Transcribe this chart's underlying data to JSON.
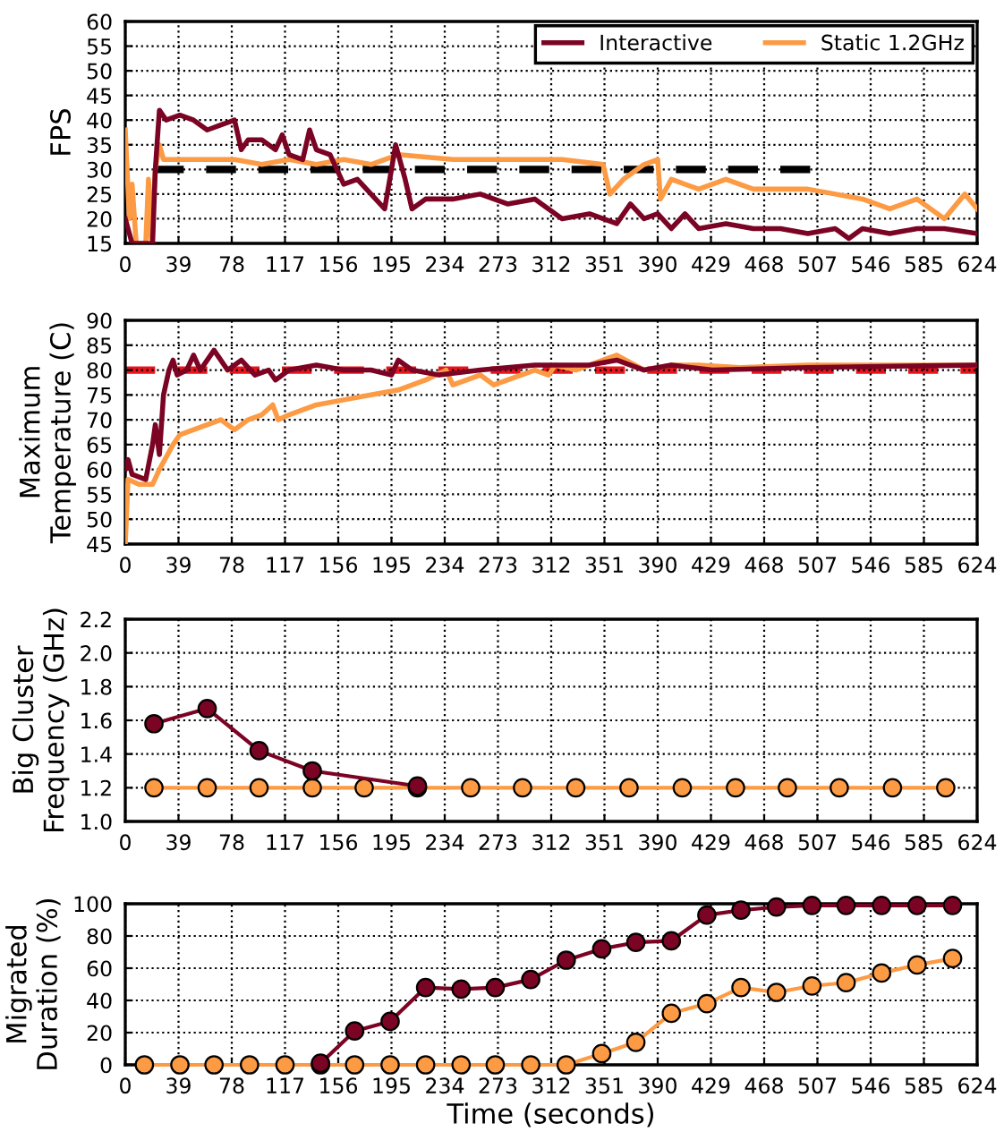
{
  "chart_data": [
    {
      "type": "line",
      "ylabel": "FPS",
      "xlim": [
        0,
        624
      ],
      "xticks": [
        0,
        39,
        78,
        117,
        156,
        195,
        234,
        273,
        312,
        351,
        390,
        429,
        468,
        507,
        546,
        585,
        624
      ],
      "ylim": [
        15,
        60
      ],
      "yticks": [
        15,
        20,
        25,
        30,
        35,
        40,
        45,
        50,
        55,
        60
      ],
      "grid": true,
      "legend": "top right",
      "marker": "none",
      "series": [
        {
          "name": "Interactive",
          "color": "#7b0323",
          "x": [
            0,
            5,
            20,
            22,
            25,
            30,
            40,
            50,
            60,
            70,
            80,
            85,
            90,
            100,
            110,
            115,
            120,
            130,
            135,
            140,
            150,
            155,
            160,
            170,
            180,
            190,
            195,
            198,
            205,
            210,
            220,
            240,
            260,
            280,
            300,
            310,
            320,
            340,
            360,
            370,
            380,
            390,
            400,
            410,
            420,
            440,
            460,
            480,
            500,
            520,
            530,
            540,
            560,
            580,
            600,
            624
          ],
          "values": [
            20,
            15,
            15,
            30,
            42,
            40,
            41,
            40,
            38,
            39,
            40,
            34,
            36,
            36,
            34,
            37,
            33,
            32,
            38,
            34,
            33,
            30,
            27,
            28,
            25,
            22,
            30,
            35,
            28,
            22,
            24,
            24,
            25,
            23,
            24,
            22,
            20,
            21,
            19,
            23,
            20,
            21,
            18,
            21,
            18,
            19,
            18,
            18,
            17,
            18,
            16,
            18,
            17,
            18,
            18,
            17
          ]
        },
        {
          "name": "Static 1.2GHz",
          "color": "#fd9a44",
          "x": [
            0,
            3,
            5,
            8,
            15,
            17,
            19,
            22,
            25,
            28,
            40,
            60,
            80,
            100,
            120,
            140,
            160,
            180,
            200,
            240,
            280,
            320,
            350,
            355,
            365,
            380,
            390,
            392,
            400,
            420,
            440,
            460,
            480,
            500,
            520,
            540,
            560,
            580,
            600,
            615,
            624
          ],
          "values": [
            38,
            20,
            27,
            15,
            15,
            28,
            16,
            30,
            35,
            32,
            32,
            32,
            32,
            31,
            32,
            31,
            32,
            31,
            33,
            32,
            32,
            32,
            31,
            25,
            28,
            31,
            32,
            24,
            28,
            26,
            28,
            26,
            26,
            26,
            25,
            24,
            22,
            24,
            20,
            25,
            22
          ]
        },
        {
          "color": "#000000",
          "line_style": "dashed",
          "x": [
            21,
            504
          ],
          "values": [
            30,
            30
          ]
        }
      ]
    },
    {
      "type": "line",
      "ylabel": "Maximum\nTemperature (C)",
      "xlim": [
        0,
        624
      ],
      "xticks": [
        0,
        39,
        78,
        117,
        156,
        195,
        234,
        273,
        312,
        351,
        390,
        429,
        468,
        507,
        546,
        585,
        624
      ],
      "ylim": [
        45,
        90
      ],
      "yticks": [
        45,
        50,
        55,
        60,
        65,
        70,
        75,
        80,
        85,
        90
      ],
      "grid": true,
      "marker": "none",
      "ref_lines": [
        {
          "axis": "y",
          "value": 80,
          "color": "#e8141c",
          "line_style": "dashed"
        }
      ],
      "series": [
        {
          "color": "#7b0323",
          "x": [
            0,
            2,
            5,
            15,
            20,
            22,
            25,
            28,
            32,
            35,
            38,
            45,
            50,
            55,
            65,
            75,
            85,
            95,
            105,
            110,
            120,
            140,
            160,
            180,
            195,
            200,
            210,
            230,
            260,
            300,
            340,
            360,
            380,
            400,
            430,
            500,
            624
          ],
          "values": [
            60,
            62,
            59,
            58,
            65,
            69,
            63,
            75,
            80,
            82,
            79,
            80,
            83,
            80,
            84,
            80,
            82,
            79,
            80,
            78,
            80,
            81,
            80,
            80,
            79,
            82,
            80,
            79,
            80,
            81,
            81,
            82,
            80,
            81,
            80,
            80.5,
            81
          ]
        },
        {
          "color": "#fd9a44",
          "x": [
            0,
            2,
            10,
            20,
            25,
            35,
            40,
            60,
            70,
            80,
            90,
            100,
            108,
            112,
            120,
            140,
            160,
            180,
            200,
            220,
            235,
            240,
            260,
            270,
            290,
            300,
            310,
            315,
            330,
            350,
            360,
            380,
            400,
            420,
            450,
            500,
            560,
            624
          ],
          "values": [
            45,
            58,
            57,
            57,
            60,
            65,
            67,
            69,
            70,
            68,
            70,
            71,
            73,
            70,
            71,
            73,
            74,
            75,
            76,
            78,
            80,
            77,
            79,
            77,
            79,
            80,
            79,
            81,
            80,
            82,
            83,
            80,
            81,
            81,
            80.5,
            81,
            81,
            81
          ]
        }
      ]
    },
    {
      "type": "line",
      "ylabel": "Big Cluster\nFrequency (GHz)",
      "xlim": [
        0,
        624
      ],
      "xticks": [
        0,
        39,
        78,
        117,
        156,
        195,
        234,
        273,
        312,
        351,
        390,
        429,
        468,
        507,
        546,
        585,
        624
      ],
      "ylim": [
        1.0,
        2.2
      ],
      "yticks": [
        {
          "value": 1.0,
          "label": "1.0"
        },
        1.2,
        1.4,
        1.6,
        1.8,
        {
          "value": 2.0,
          "label": "2.0"
        },
        2.2
      ],
      "grid": true,
      "marker": "circle",
      "series": [
        {
          "color": "#7b0323",
          "x": [
            21,
            60,
            98,
            137,
            214
          ],
          "values": [
            1.58,
            1.67,
            1.42,
            1.3,
            1.21
          ]
        },
        {
          "color": "#fd9a44",
          "x": [
            21,
            60,
            98,
            137,
            175,
            214,
            253,
            291,
            330,
            369,
            408,
            447,
            485,
            523,
            562,
            601
          ],
          "values": [
            1.2,
            1.2,
            1.2,
            1.2,
            1.2,
            1.2,
            1.2,
            1.2,
            1.2,
            1.2,
            1.2,
            1.2,
            1.2,
            1.2,
            1.2,
            1.2
          ]
        }
      ]
    },
    {
      "type": "line",
      "xlabel": "Time (seconds)",
      "ylabel": "Migrated\nDuration (%)",
      "xlim": [
        0,
        624
      ],
      "xticks": [
        0,
        39,
        78,
        117,
        156,
        195,
        234,
        273,
        312,
        351,
        390,
        429,
        468,
        507,
        546,
        585,
        624
      ],
      "ylim": [
        0,
        100
      ],
      "yticks": [
        0,
        20,
        40,
        60,
        80,
        100
      ],
      "grid": true,
      "marker": "circle",
      "series": [
        {
          "color": "#7b0323",
          "x": [
            143,
            168,
            194,
            220,
            246,
            271,
            297,
            323,
            349,
            374,
            400,
            426,
            451,
            477,
            503,
            528,
            554,
            580,
            606
          ],
          "values": [
            1,
            21,
            27,
            48,
            47,
            48,
            53,
            65,
            72,
            76,
            77,
            93,
            96,
            98,
            99,
            99,
            99,
            99,
            99
          ]
        },
        {
          "color": "#fd9a44",
          "x": [
            14,
            40,
            65,
            91,
            117,
            143,
            168,
            194,
            220,
            246,
            271,
            297,
            323,
            349,
            374,
            400,
            426,
            451,
            477,
            503,
            528,
            554,
            580,
            606
          ],
          "values": [
            0,
            0,
            0,
            0,
            0,
            0,
            0,
            0,
            0,
            0,
            0,
            0,
            0,
            7,
            14,
            32,
            38,
            48,
            45,
            49,
            51,
            57,
            62,
            66
          ]
        }
      ]
    }
  ]
}
